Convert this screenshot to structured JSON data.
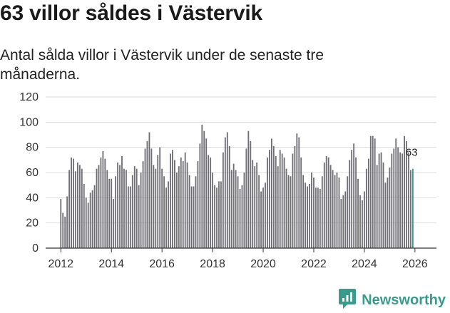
{
  "header": {
    "title": "63 villor såldes i Västervik",
    "subtitle": "Antal sålda villor i Västervik under de senaste tre månaderna."
  },
  "brand": {
    "name": "Newsworthy",
    "color": "#3a9b8d",
    "icon": "newsworthy-logo-icon"
  },
  "colors": {
    "bar": "#6f6e74",
    "highlight": "#3a9b8d",
    "grid": "#dddddd"
  },
  "chart_data": {
    "type": "bar",
    "title": "63 villor såldes i Västervik",
    "subtitle": "Antal sålda villor i Västervik under de senaste tre månaderna.",
    "xlabel": "",
    "ylabel": "",
    "ylim": [
      0,
      120
    ],
    "yticks": [
      0,
      20,
      40,
      60,
      80,
      100,
      120
    ],
    "xlim": [
      2011.4,
      2026.85
    ],
    "xticks": [
      2012,
      2014,
      2016,
      2018,
      2020,
      2022,
      2024,
      2026
    ],
    "start": [
      2012,
      1
    ],
    "grid": true,
    "last_label": "63",
    "values": [
      39,
      28,
      25,
      41,
      62,
      72,
      71,
      61,
      68,
      66,
      63,
      51,
      40,
      36,
      44,
      46,
      50,
      63,
      66,
      72,
      77,
      71,
      62,
      55,
      55,
      39,
      57,
      68,
      66,
      73,
      63,
      62,
      49,
      49,
      58,
      65,
      63,
      50,
      60,
      69,
      79,
      85,
      92,
      79,
      66,
      63,
      74,
      80,
      63,
      57,
      48,
      53,
      75,
      78,
      70,
      60,
      65,
      72,
      69,
      76,
      68,
      58,
      49,
      49,
      57,
      69,
      83,
      98,
      93,
      87,
      74,
      72,
      60,
      50,
      48,
      53,
      53,
      76,
      88,
      92,
      81,
      62,
      67,
      62,
      57,
      47,
      50,
      60,
      79,
      93,
      85,
      70,
      65,
      68,
      58,
      45,
      48,
      52,
      72,
      78,
      87,
      81,
      73,
      65,
      78,
      75,
      72,
      63,
      58,
      57,
      75,
      81,
      91,
      88,
      72,
      58,
      52,
      49,
      51,
      60,
      56,
      48,
      48,
      47,
      57,
      68,
      73,
      72,
      66,
      62,
      58,
      60,
      56,
      39,
      42,
      45,
      57,
      70,
      78,
      83,
      72,
      55,
      42,
      38,
      45,
      63,
      71,
      89,
      89,
      87,
      66,
      75,
      76,
      68,
      52,
      56,
      64,
      75,
      79,
      87,
      80,
      76,
      75,
      89,
      85,
      76,
      62,
      63
    ]
  }
}
